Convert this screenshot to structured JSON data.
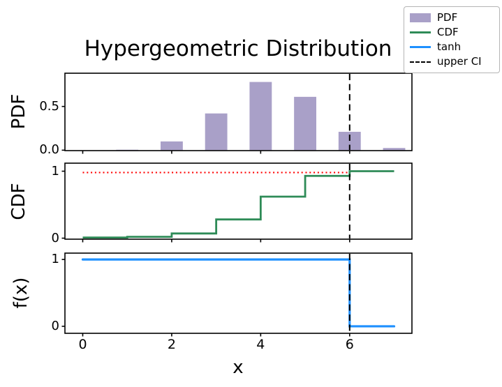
{
  "title": "Hypergeometric Distribution",
  "colors": {
    "pdf_bar": "#a9a0c8",
    "cdf_line": "#2e8b57",
    "tanh_line": "#1e90ff",
    "threshold_dotted": "#ff0000",
    "upper_ci_dashed": "#000000",
    "axis": "#000000"
  },
  "legend": {
    "items": [
      {
        "label": "PDF",
        "type": "patch",
        "color": "#a9a0c8"
      },
      {
        "label": "CDF",
        "type": "line",
        "color": "#2e8b57"
      },
      {
        "label": "tanh",
        "type": "line",
        "color": "#1e90ff"
      },
      {
        "label": "upper CI",
        "type": "dash",
        "color": "#000000"
      }
    ]
  },
  "xaxis": {
    "label": "x",
    "ticks": [
      {
        "value": 0,
        "label": "0"
      },
      {
        "value": 2,
        "label": "2"
      },
      {
        "value": 4,
        "label": "4"
      },
      {
        "value": 6,
        "label": "6"
      }
    ]
  },
  "chart_data": [
    {
      "type": "bar",
      "name": "PDF",
      "ylabel": "PDF",
      "x": [
        0,
        1,
        2,
        3,
        4,
        5,
        6,
        7
      ],
      "values": [
        0.0,
        0.005,
        0.1,
        0.42,
        0.78,
        0.61,
        0.21,
        0.025
      ],
      "bar_width": 0.5,
      "xlim": [
        -0.4,
        7.4
      ],
      "ylim": [
        -0.005,
        0.88
      ],
      "yticks": [
        {
          "value": 0.0,
          "label": "0.0"
        },
        {
          "value": 0.5,
          "label": "0.5"
        }
      ],
      "vline": {
        "x": 6,
        "style": "dashed",
        "name": "upper CI"
      }
    },
    {
      "type": "step",
      "name": "CDF",
      "ylabel": "CDF",
      "x": [
        0,
        1,
        2,
        3,
        4,
        5,
        6
      ],
      "values": [
        0.01,
        0.02,
        0.07,
        0.28,
        0.62,
        0.93,
        1.0
      ],
      "x_end": 7,
      "xlim": [
        -0.4,
        7.4
      ],
      "ylim": [
        -0.015,
        1.12
      ],
      "yticks": [
        {
          "value": 0,
          "label": "0"
        },
        {
          "value": 1,
          "label": "1"
        }
      ],
      "hline": {
        "y": 0.98,
        "x0": 0,
        "x1": 6,
        "style": "dotted",
        "color": "#ff0000"
      },
      "vline": {
        "x": 6,
        "style": "dashed",
        "name": "upper CI"
      }
    },
    {
      "type": "line",
      "name": "tanh",
      "ylabel": "f(x)",
      "points_x": [
        0,
        6,
        6,
        7
      ],
      "points_y": [
        1,
        1,
        0,
        0
      ],
      "xlim": [
        -0.4,
        7.4
      ],
      "ylim": [
        -0.105,
        1.095
      ],
      "yticks": [
        {
          "value": 0,
          "label": "0"
        },
        {
          "value": 1,
          "label": "1"
        }
      ],
      "vline": {
        "x": 6,
        "style": "dashed",
        "name": "upper CI"
      }
    }
  ]
}
